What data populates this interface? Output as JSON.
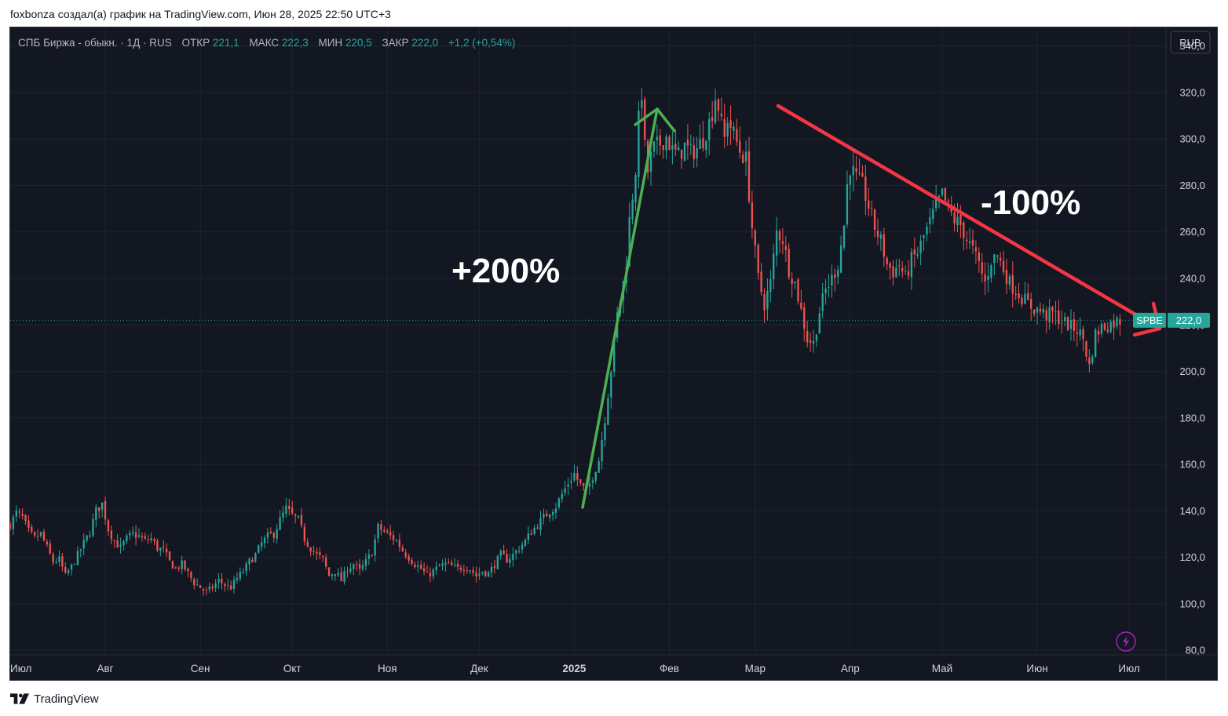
{
  "caption": "foxbonza создал(а) график на TradingView.com, Июн 28, 2025 22:50 UTC+3",
  "footer": {
    "brand": "TradingView",
    "logo_icon": "tradingview-logo-icon"
  },
  "legend": {
    "symbol": "СПБ Биржа - обыкн. · 1Д · RUS",
    "open_label": "ОТКР",
    "open_value": "221,1",
    "high_label": "МАКС",
    "high_value": "222,3",
    "low_label": "МИН",
    "low_value": "220,5",
    "close_label": "ЗАКР",
    "close_value": "222,0",
    "change": "+1,2 (+0,54%)"
  },
  "currency_button": "RUB",
  "last_price": {
    "ticker": "SPBE",
    "value": "222,0",
    "price": 222.0
  },
  "annotations": {
    "up_text": "+200%",
    "down_text": "-100%"
  },
  "colors": {
    "background": "#131722",
    "grid": "#1f2330",
    "up": "#26a69a",
    "down": "#ef5350",
    "text": "#d1d4dc",
    "green_arrow": "#4caf50",
    "red_arrow": "#f23645",
    "legend_value": "#26a69a"
  },
  "chart_data": {
    "type": "candlestick",
    "title": "СПБ Биржа - обыкн. · 1Д · RUS",
    "y_ticks": [
      "340,0",
      "320,0",
      "300,0",
      "280,0",
      "260,0",
      "240,0",
      "220,0",
      "200,0",
      "180,0",
      "160,0",
      "140,0",
      "120,0",
      "100,0",
      "80,0"
    ],
    "y_tick_values": [
      340,
      320,
      300,
      280,
      260,
      240,
      220,
      200,
      180,
      160,
      140,
      120,
      100,
      80
    ],
    "ylim": [
      78,
      348
    ],
    "x_ticks": [
      {
        "label": "Июл",
        "day": 0
      },
      {
        "label": "Авг",
        "day": 31
      },
      {
        "label": "Сен",
        "day": 62
      },
      {
        "label": "Окт",
        "day": 92
      },
      {
        "label": "Ноя",
        "day": 123
      },
      {
        "label": "Дек",
        "day": 153
      },
      {
        "label": "2025",
        "day": 184
      },
      {
        "label": "Фев",
        "day": 215
      },
      {
        "label": "Мар",
        "day": 243
      },
      {
        "label": "Апр",
        "day": 274
      },
      {
        "label": "Май",
        "day": 304
      },
      {
        "label": "Июн",
        "day": 335
      },
      {
        "label": "Июл",
        "day": 365
      }
    ],
    "xlim": [
      0,
      377
    ],
    "first_day": 0,
    "last_day": 362,
    "daily_close": [
      [
        0,
        134
      ],
      [
        2,
        139
      ],
      [
        4,
        137
      ],
      [
        6,
        131
      ],
      [
        8,
        128
      ],
      [
        10,
        130
      ],
      [
        12,
        124
      ],
      [
        14,
        118
      ],
      [
        16,
        119
      ],
      [
        18,
        112
      ],
      [
        20,
        116
      ],
      [
        22,
        121
      ],
      [
        24,
        126
      ],
      [
        26,
        131
      ],
      [
        28,
        140
      ],
      [
        30,
        143
      ],
      [
        32,
        132
      ],
      [
        34,
        127
      ],
      [
        36,
        124
      ],
      [
        38,
        128
      ],
      [
        40,
        130
      ],
      [
        42,
        129
      ],
      [
        44,
        127
      ],
      [
        46,
        128
      ],
      [
        48,
        124
      ],
      [
        50,
        123
      ],
      [
        52,
        118
      ],
      [
        54,
        115
      ],
      [
        56,
        117
      ],
      [
        58,
        113
      ],
      [
        60,
        109
      ],
      [
        62,
        107
      ],
      [
        64,
        105
      ],
      [
        66,
        107
      ],
      [
        68,
        110
      ],
      [
        70,
        108
      ],
      [
        72,
        107
      ],
      [
        74,
        111
      ],
      [
        76,
        114
      ],
      [
        78,
        118
      ],
      [
        80,
        121
      ],
      [
        82,
        126
      ],
      [
        84,
        129
      ],
      [
        86,
        130
      ],
      [
        88,
        136
      ],
      [
        90,
        141
      ],
      [
        92,
        138
      ],
      [
        94,
        136
      ],
      [
        96,
        128
      ],
      [
        98,
        124
      ],
      [
        100,
        121
      ],
      [
        102,
        119
      ],
      [
        104,
        112
      ],
      [
        106,
        114
      ],
      [
        108,
        110
      ],
      [
        110,
        115
      ],
      [
        112,
        117
      ],
      [
        114,
        114
      ],
      [
        116,
        118
      ],
      [
        118,
        122
      ],
      [
        120,
        133
      ],
      [
        122,
        131
      ],
      [
        124,
        129
      ],
      [
        126,
        127
      ],
      [
        128,
        123
      ],
      [
        130,
        120
      ],
      [
        132,
        117
      ],
      [
        134,
        115
      ],
      [
        136,
        112
      ],
      [
        138,
        114
      ],
      [
        140,
        116
      ],
      [
        142,
        117
      ],
      [
        144,
        116
      ],
      [
        146,
        115
      ],
      [
        148,
        116
      ],
      [
        150,
        115
      ],
      [
        152,
        112
      ],
      [
        154,
        114
      ],
      [
        156,
        113
      ],
      [
        158,
        117
      ],
      [
        160,
        121
      ],
      [
        162,
        119
      ],
      [
        164,
        121
      ],
      [
        166,
        124
      ],
      [
        168,
        127
      ],
      [
        170,
        131
      ],
      [
        172,
        134
      ],
      [
        174,
        137
      ],
      [
        176,
        140
      ],
      [
        178,
        142
      ],
      [
        180,
        147
      ],
      [
        182,
        152
      ],
      [
        184,
        156
      ],
      [
        186,
        151
      ],
      [
        188,
        148
      ],
      [
        190,
        155
      ],
      [
        192,
        162
      ],
      [
        194,
        180
      ],
      [
        196,
        201
      ],
      [
        198,
        224
      ],
      [
        200,
        238
      ],
      [
        201,
        248
      ],
      [
        202,
        265
      ],
      [
        204,
        287
      ],
      [
        205,
        308
      ],
      [
        206,
        320
      ],
      [
        207,
        296
      ],
      [
        208,
        286
      ],
      [
        209,
        292
      ],
      [
        210,
        296
      ],
      [
        212,
        298
      ],
      [
        214,
        301
      ],
      [
        216,
        295
      ],
      [
        218,
        293
      ],
      [
        220,
        297
      ],
      [
        222,
        294
      ],
      [
        224,
        296
      ],
      [
        226,
        300
      ],
      [
        228,
        307
      ],
      [
        229,
        312
      ],
      [
        230,
        318
      ],
      [
        231,
        314
      ],
      [
        232,
        306
      ],
      [
        233,
        300
      ],
      [
        234,
        309
      ],
      [
        236,
        302
      ],
      [
        238,
        295
      ],
      [
        240,
        291
      ],
      [
        242,
        262
      ],
      [
        244,
        240
      ],
      [
        246,
        229
      ],
      [
        248,
        238
      ],
      [
        250,
        260
      ],
      [
        252,
        257
      ],
      [
        254,
        244
      ],
      [
        256,
        238
      ],
      [
        258,
        226
      ],
      [
        260,
        214
      ],
      [
        262,
        212
      ],
      [
        264,
        226
      ],
      [
        266,
        235
      ],
      [
        268,
        240
      ],
      [
        270,
        246
      ],
      [
        272,
        263
      ],
      [
        273,
        280
      ],
      [
        274,
        288
      ],
      [
        276,
        283
      ],
      [
        278,
        280
      ],
      [
        280,
        271
      ],
      [
        282,
        262
      ],
      [
        284,
        256
      ],
      [
        286,
        246
      ],
      [
        288,
        243
      ],
      [
        290,
        246
      ],
      [
        292,
        240
      ],
      [
        294,
        248
      ],
      [
        296,
        251
      ],
      [
        298,
        258
      ],
      [
        300,
        264
      ],
      [
        302,
        271
      ],
      [
        304,
        276
      ],
      [
        306,
        270
      ],
      [
        308,
        265
      ],
      [
        310,
        263
      ],
      [
        312,
        257
      ],
      [
        314,
        252
      ],
      [
        316,
        246
      ],
      [
        318,
        238
      ],
      [
        320,
        248
      ],
      [
        322,
        250
      ],
      [
        324,
        244
      ],
      [
        326,
        238
      ],
      [
        328,
        235
      ],
      [
        330,
        232
      ],
      [
        332,
        229
      ],
      [
        334,
        227
      ],
      [
        336,
        226
      ],
      [
        338,
        224
      ],
      [
        340,
        225
      ],
      [
        342,
        223
      ],
      [
        344,
        221
      ],
      [
        346,
        219
      ],
      [
        348,
        218
      ],
      [
        350,
        214
      ],
      [
        352,
        202
      ],
      [
        354,
        216
      ],
      [
        356,
        219
      ],
      [
        358,
        220
      ],
      [
        360,
        221
      ],
      [
        362,
        222
      ]
    ]
  }
}
